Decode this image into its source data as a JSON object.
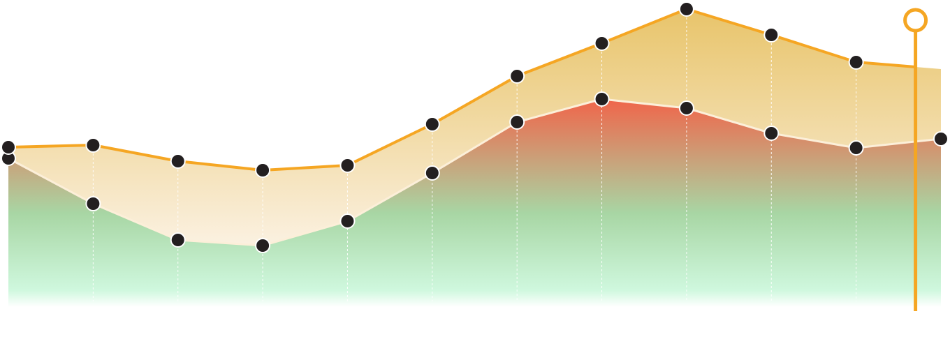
{
  "chart_data": {
    "type": "area",
    "title": "",
    "xlabel": "",
    "ylabel": "",
    "grid": "vertical-dashed",
    "legend": "none",
    "x": [
      0,
      1,
      2,
      3,
      4,
      5,
      6,
      7,
      8,
      9,
      10,
      11
    ],
    "ylim": [
      0,
      440
    ],
    "series": [
      {
        "role": "upper",
        "values": [
          229,
          232,
          209,
          196,
          203,
          262,
          331,
          378,
          427,
          390,
          351,
          341
        ]
      },
      {
        "role": "lower",
        "values": [
          213,
          148,
          96,
          88,
          123,
          192,
          265,
          298,
          285,
          249,
          228,
          241
        ]
      }
    ],
    "marker": {
      "x": 10.7,
      "label": ""
    },
    "colors": {
      "upper_line": "#F5A623",
      "lower_line": "#FCEFD9",
      "upper_fill_top": "#E8C46A",
      "upper_fill_bottom": "#FBF1E1",
      "lower_fill_top": "#F0654A",
      "lower_fill_mid": "#A8D6A4",
      "lower_fill_bottom": "#CFF8DE",
      "point_fill": "#231F20",
      "point_stroke": "#FFFFFF",
      "grid": "#FFFFFF",
      "marker": "#F5A623"
    }
  }
}
